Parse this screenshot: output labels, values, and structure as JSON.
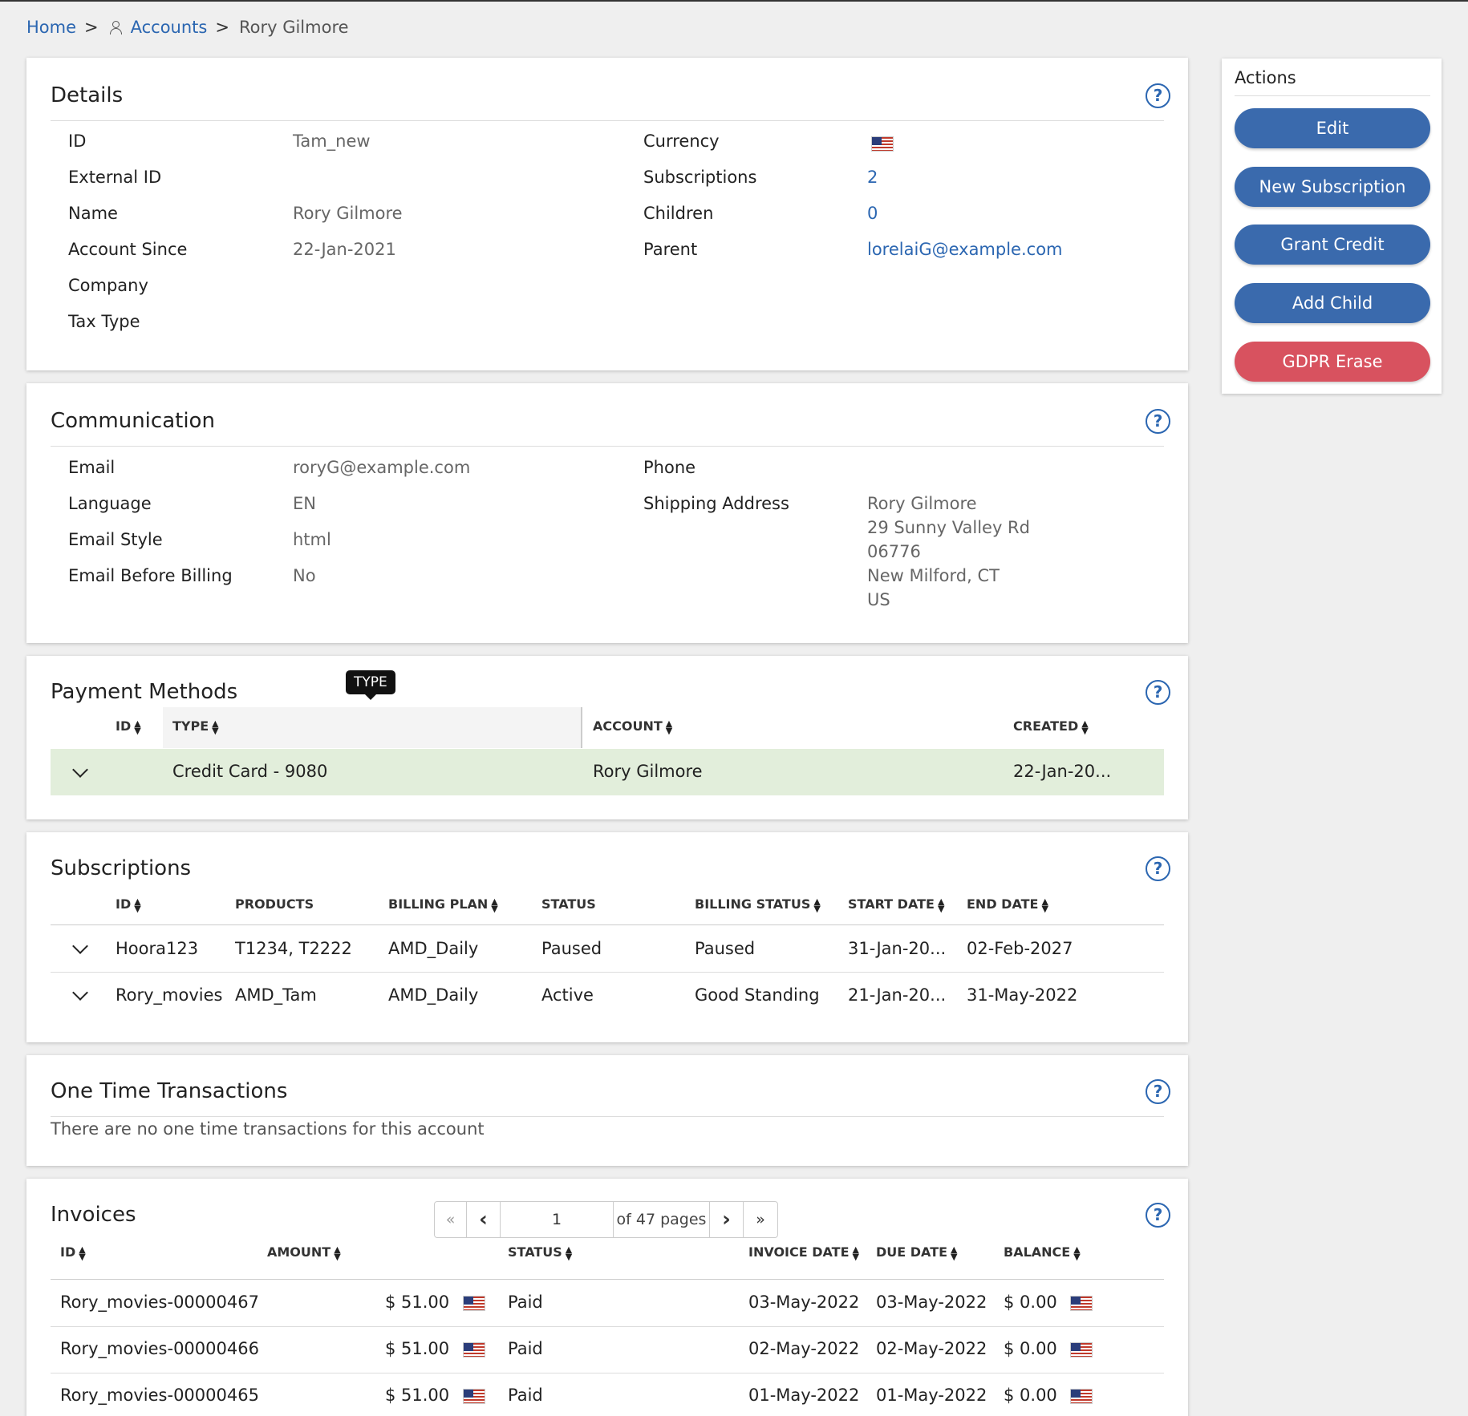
{
  "breadcrumb": {
    "home": "Home",
    "sep": ">",
    "accounts": "Accounts",
    "current": "Rory Gilmore"
  },
  "details": {
    "title": "Details",
    "left": [
      {
        "label": "ID",
        "value": "Tam_new"
      },
      {
        "label": "External ID",
        "value": ""
      },
      {
        "label": "Name",
        "value": "Rory Gilmore"
      },
      {
        "label": "Account Since",
        "value": "22-Jan-2021"
      },
      {
        "label": "Company",
        "value": ""
      },
      {
        "label": "Tax Type",
        "value": ""
      }
    ],
    "right": [
      {
        "label": "Currency",
        "value": "",
        "icon": "us-flag-icon"
      },
      {
        "label": "Subscriptions",
        "value": "2"
      },
      {
        "label": "Children",
        "value": "0"
      },
      {
        "label": "Parent",
        "value": "lorelaiG@example.com"
      }
    ]
  },
  "communication": {
    "title": "Communication",
    "left": [
      {
        "label": "Email",
        "value": "roryG@example.com"
      },
      {
        "label": "Language",
        "value": "EN"
      },
      {
        "label": "Email Style",
        "value": "html"
      },
      {
        "label": "Email Before Billing",
        "value": "No"
      }
    ],
    "right": [
      {
        "label": "Phone",
        "value": ""
      },
      {
        "label": "Shipping Address",
        "lines": [
          "Rory Gilmore",
          "29 Sunny Valley Rd",
          "06776",
          "New Milford, CT",
          "US"
        ]
      }
    ]
  },
  "payment_methods": {
    "title": "Payment Methods",
    "tooltip": "TYPE",
    "columns": [
      "ID",
      "TYPE",
      "ACCOUNT",
      "CREATED"
    ],
    "rows": [
      {
        "type": "Credit Card - 9080",
        "account": "Rory Gilmore",
        "created": "22-Jan-20..."
      }
    ],
    "highlight_color": "#e2eedb"
  },
  "subscriptions": {
    "title": "Subscriptions",
    "columns": [
      "ID",
      "PRODUCTS",
      "BILLING PLAN",
      "STATUS",
      "BILLING STATUS",
      "START DATE",
      "END DATE"
    ],
    "rows": [
      {
        "id": "Hoora123",
        "products": "T1234, T2222",
        "plan": "AMD_Daily",
        "status": "Paused",
        "billing_status": "Paused",
        "start": "31-Jan-20...",
        "end": "02-Feb-2027"
      },
      {
        "id": "Rory_movies",
        "products": "AMD_Tam",
        "plan": "AMD_Daily",
        "status": "Active",
        "billing_status": "Good Standing",
        "start": "21-Jan-20...",
        "end": "31-May-2022"
      }
    ]
  },
  "one_time": {
    "title": "One Time Transactions",
    "empty": "There are no one time transactions for this account"
  },
  "invoices": {
    "title": "Invoices",
    "pager": {
      "first": "«",
      "prev": "‹",
      "page": "1",
      "of": "of 47 pages",
      "next": "›",
      "last": "»"
    },
    "columns": [
      "ID",
      "AMOUNT",
      "STATUS",
      "INVOICE DATE",
      "DUE DATE",
      "BALANCE"
    ],
    "rows": [
      {
        "id": "Rory_movies-00000467",
        "amount": "$ 51.00",
        "status": "Paid",
        "invoice_date": "03-May-2022",
        "due_date": "03-May-2022",
        "balance": "$ 0.00"
      },
      {
        "id": "Rory_movies-00000466",
        "amount": "$ 51.00",
        "status": "Paid",
        "invoice_date": "02-May-2022",
        "due_date": "02-May-2022",
        "balance": "$ 0.00"
      },
      {
        "id": "Rory_movies-00000465",
        "amount": "$ 51.00",
        "status": "Paid",
        "invoice_date": "01-May-2022",
        "due_date": "01-May-2022",
        "balance": "$ 0.00"
      }
    ]
  },
  "actions": {
    "title": "Actions",
    "buttons": [
      "Edit",
      "New Subscription",
      "Grant Credit",
      "Add Child",
      "GDPR Erase"
    ],
    "primary_color": "#3a6aad",
    "danger_color": "#d8525f"
  },
  "help_glyph": "?"
}
